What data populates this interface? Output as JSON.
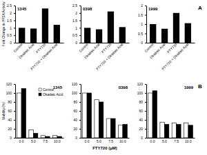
{
  "chart_data": [
    {
      "type": "bar",
      "title": "1345",
      "y_label": "Fold Change in PP2A Activity",
      "categories": [
        "Control",
        "Okadaic Acid",
        "FTY720",
        "FTY720 + Okadaic Acid"
      ],
      "values": [
        1.0,
        0.95,
        2.3,
        1.2
      ],
      "color": "#000000",
      "ylim": [
        0,
        2.5
      ],
      "yticks": [
        0,
        0.5,
        1,
        1.5,
        2,
        2.5
      ]
    },
    {
      "type": "bar",
      "title": "0398",
      "categories": [
        "Control",
        "Okadaic Acid",
        "FTY720",
        "FTY720 + Okadaic Acid"
      ],
      "values": [
        1.0,
        0.9,
        2.1,
        1.05
      ],
      "color": "#000000",
      "ylim": [
        0,
        2.5
      ],
      "yticks": [
        0,
        0.5,
        1,
        1.5,
        2,
        2.5
      ]
    },
    {
      "type": "bar",
      "title": "1999",
      "annotations": [
        "A"
      ],
      "categories": [
        "Control",
        "Okadaic Acid",
        "FTY720",
        "FTY720 + Okadaic Acid"
      ],
      "values": [
        1.0,
        0.75,
        1.6,
        1.05
      ],
      "color": "#000000",
      "ylim": [
        0,
        2
      ],
      "yticks": [
        0,
        0.5,
        1,
        1.5,
        2
      ]
    },
    {
      "type": "bar",
      "title": "1345",
      "y_label": "Viability (%)",
      "legend": "top-right",
      "categories": [
        "0.0",
        "5.0",
        "7.5",
        "10.0"
      ],
      "series": [
        {
          "name": "Control",
          "color": "#ffffff",
          "values": [
            100,
            18,
            5,
            5
          ]
        },
        {
          "name": "Okadaic Acid",
          "color": "#000000",
          "values": [
            110,
            10,
            3,
            3
          ]
        }
      ],
      "ylim": [
        0,
        120
      ],
      "yticks": [
        0,
        20,
        40,
        60,
        80,
        100,
        120
      ]
    },
    {
      "type": "bar",
      "title": "0398",
      "x_label": "FTY720 (μM)",
      "categories": [
        "0.0",
        "5.0",
        "7.5",
        "10.0"
      ],
      "series": [
        {
          "name": "Control",
          "color": "#ffffff",
          "values": [
            100,
            85,
            43,
            28
          ]
        },
        {
          "name": "Okadaic Acid",
          "color": "#000000",
          "values": [
            100,
            80,
            43,
            30
          ]
        }
      ],
      "ylim": [
        0,
        120
      ],
      "yticks": [
        0,
        20,
        40,
        60,
        80,
        100,
        120
      ]
    },
    {
      "type": "bar",
      "title": "1999",
      "annotations": [
        "B"
      ],
      "categories": [
        "0.0",
        "5.0",
        "7.5",
        "10.0"
      ],
      "series": [
        {
          "name": "Control",
          "color": "#ffffff",
          "values": [
            100,
            35,
            33,
            33
          ]
        },
        {
          "name": "Okadaic Acid",
          "color": "#000000",
          "values": [
            105,
            30,
            30,
            28
          ]
        }
      ],
      "ylim": [
        0,
        120
      ],
      "yticks": [
        0,
        20,
        40,
        60,
        80,
        100,
        120
      ]
    }
  ]
}
